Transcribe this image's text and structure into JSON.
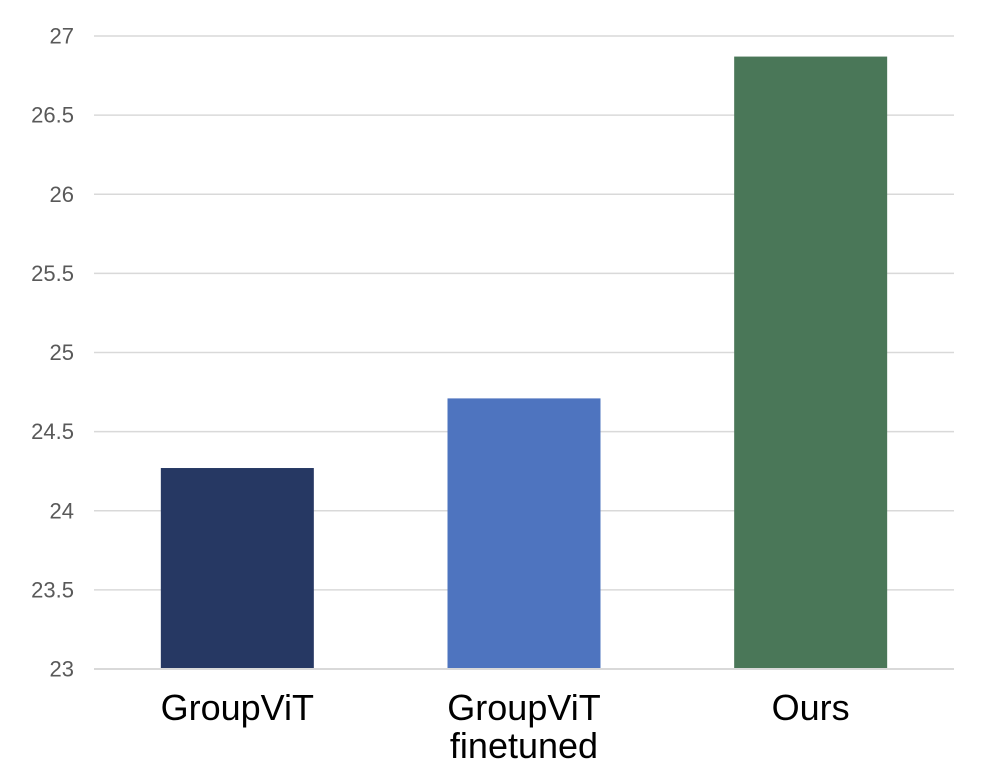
{
  "chart_data": {
    "type": "bar",
    "categories": [
      [
        "GroupViT"
      ],
      [
        "GroupViT",
        "finetuned"
      ],
      [
        "Ours"
      ]
    ],
    "values": [
      24.27,
      24.71,
      26.87
    ],
    "colors": [
      "#263863",
      "#4e74bf",
      "#4a7758"
    ],
    "ylim": [
      23,
      27
    ],
    "yticks": [
      "23",
      "23.5",
      "24",
      "24.5",
      "25",
      "25.5",
      "26",
      "26.5",
      "27"
    ],
    "ytick_values": [
      23,
      23.5,
      24,
      24.5,
      25,
      25.5,
      26,
      26.5,
      27
    ],
    "grid": true,
    "legend": "none",
    "title": "",
    "xlabel": "",
    "ylabel": ""
  }
}
